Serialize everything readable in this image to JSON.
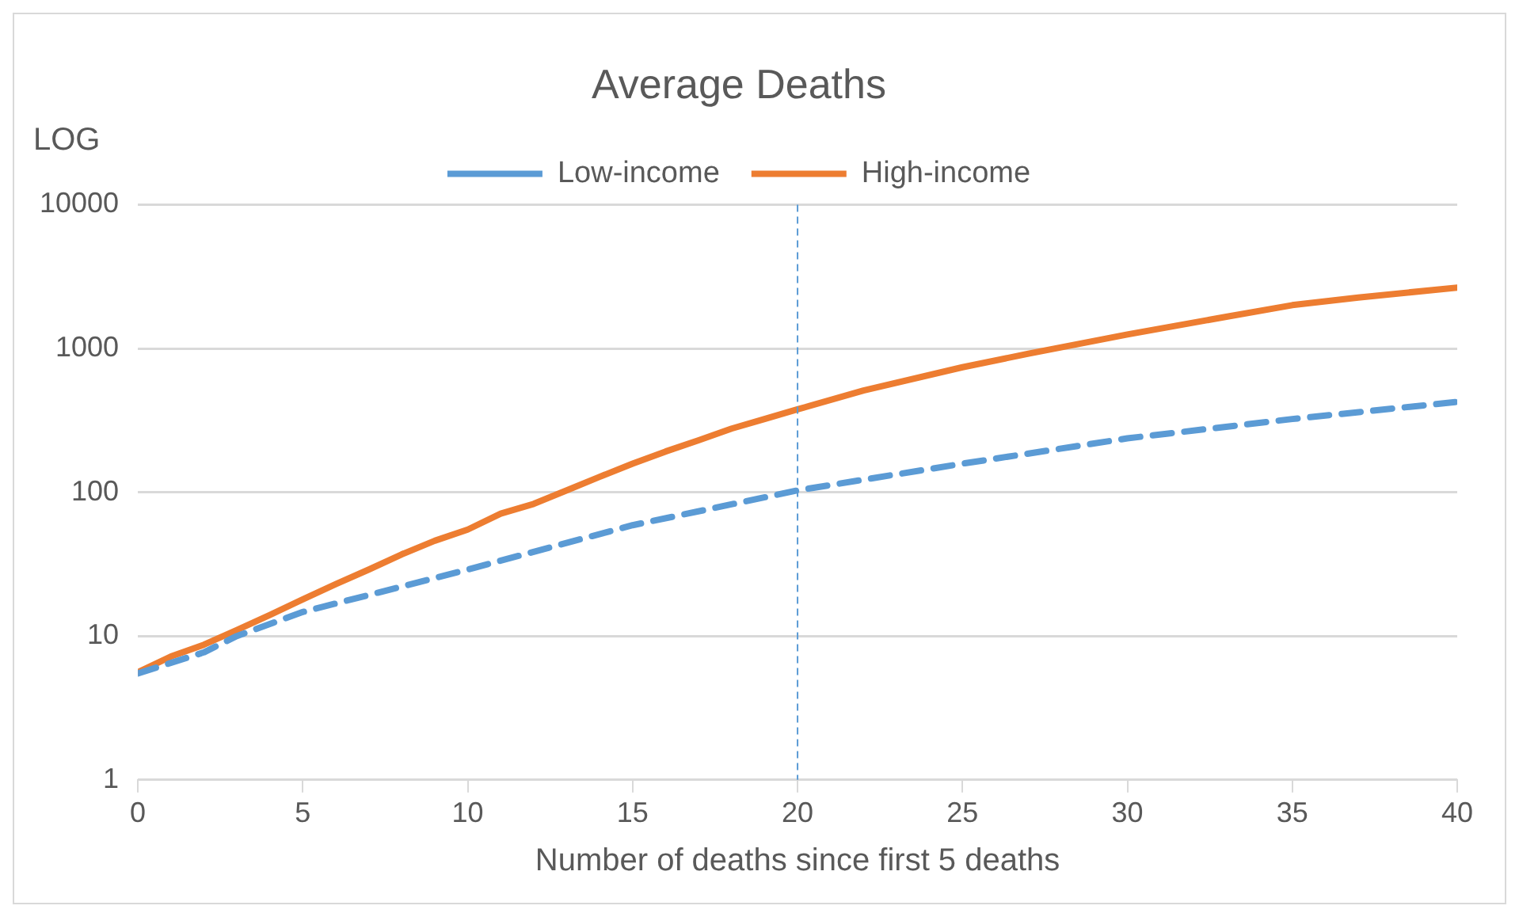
{
  "chart_data": {
    "type": "line",
    "title": "Average Deaths",
    "xlabel": "Number of deaths since first 5 deaths",
    "ylabel": "LOG",
    "series": [
      {
        "name": "Low-income",
        "color": "#5b9bd5",
        "line_style": "dashed",
        "x": [
          0,
          2,
          3,
          5,
          10,
          15,
          20,
          25,
          30,
          35,
          40
        ],
        "values": [
          5.5,
          7.7,
          10,
          14.7,
          29,
          59,
          103,
          158,
          237,
          323,
          425
        ]
      },
      {
        "name": "High-income",
        "color": "#ed7d31",
        "line_style": "solid",
        "x": [
          0,
          1,
          2,
          3,
          4,
          5,
          6,
          7,
          8,
          9,
          10,
          11,
          12,
          13,
          14,
          15,
          16,
          17,
          18,
          19,
          20,
          22,
          25,
          27,
          30,
          33,
          35,
          37,
          40
        ],
        "values": [
          5.6,
          7.2,
          8.7,
          11,
          14,
          18,
          23,
          29,
          37,
          46,
          55,
          71,
          83,
          103,
          128,
          158,
          192,
          230,
          277,
          323,
          377,
          510,
          740,
          920,
          1250,
          1660,
          2000,
          2260,
          2650
        ]
      }
    ],
    "xlim": [
      0,
      40
    ],
    "xticks": [
      0,
      5,
      10,
      15,
      20,
      25,
      30,
      35,
      40
    ],
    "ylim": [
      1,
      10000
    ],
    "yticks": [
      1,
      10,
      100,
      1000,
      10000
    ],
    "log": "y",
    "grid": "y",
    "legend": "top",
    "marker": "none",
    "ref_lines": [
      {
        "axis": "x",
        "value": 20,
        "color": "#5b9bd5",
        "line_style": "dashed"
      }
    ]
  }
}
